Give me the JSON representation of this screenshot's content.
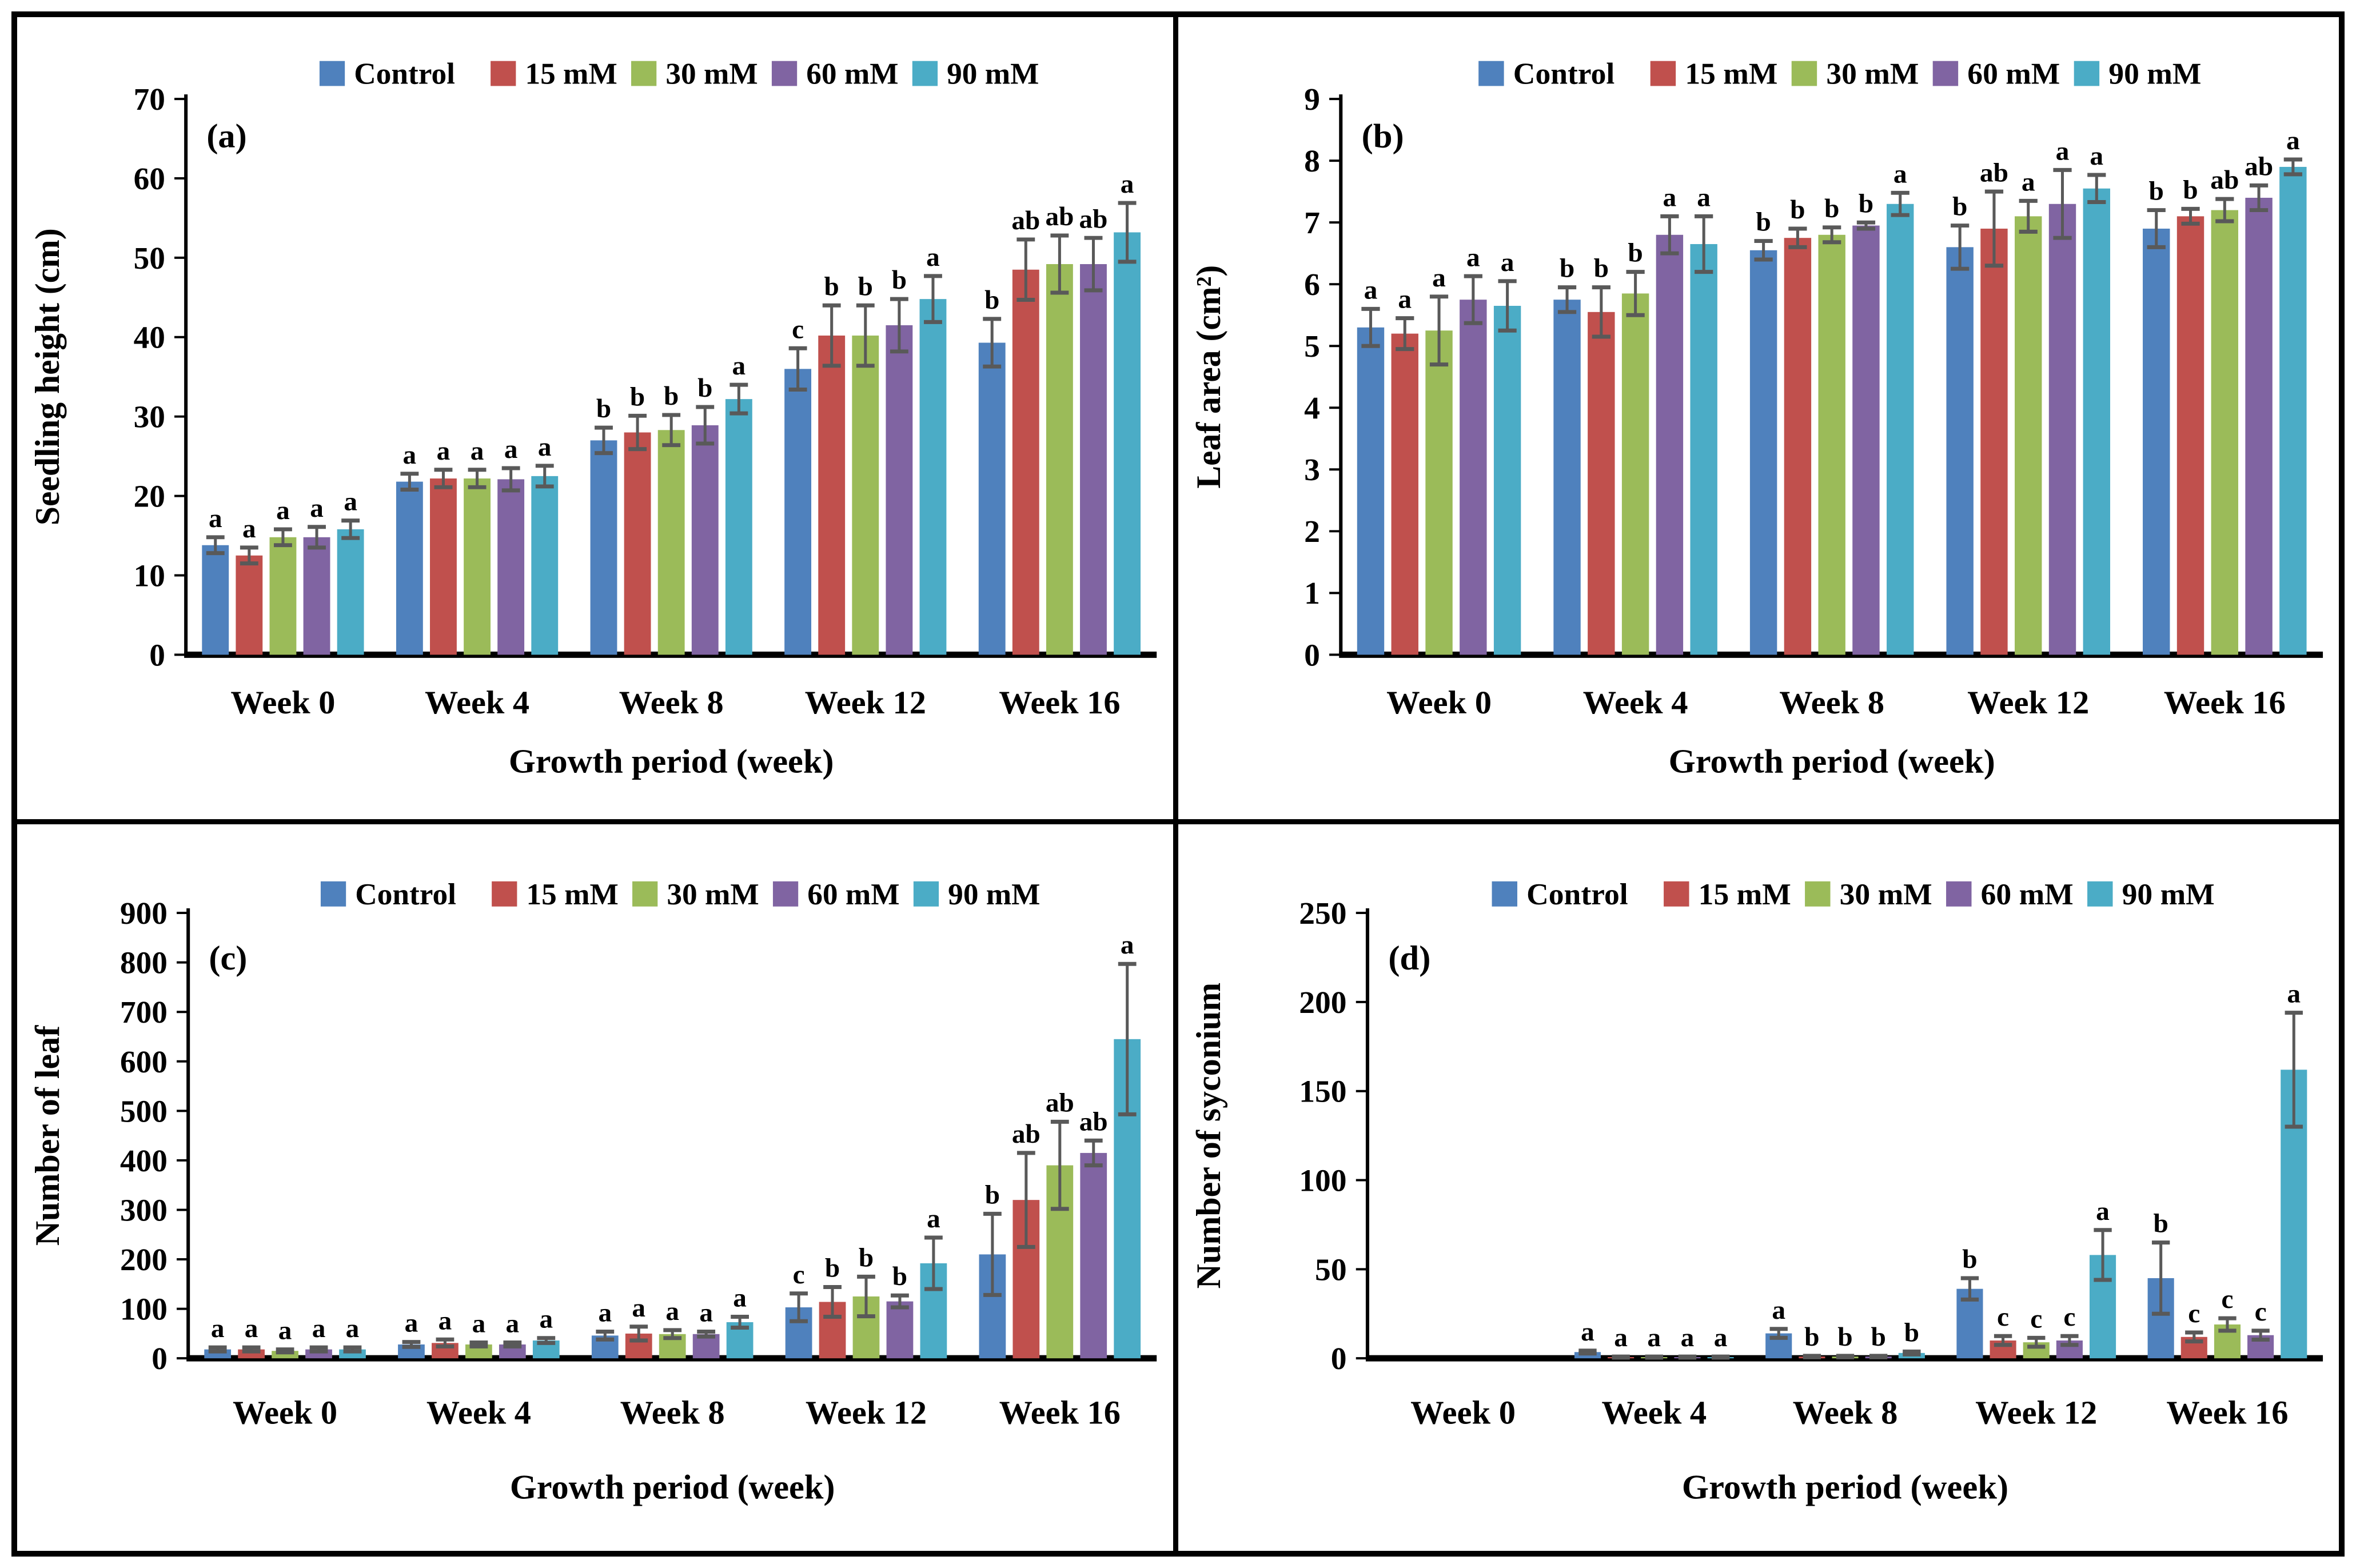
{
  "figure": {
    "background": "#FFFFFF",
    "border_color": "#000000",
    "error_bar_color": "#595959",
    "tick_label_color": "#3f3f3f",
    "text_color": "#000000"
  },
  "legend": {
    "position": "top-center",
    "items": [
      {
        "label": "Control",
        "color": "#4F81BD"
      },
      {
        "label": "15 mM",
        "color": "#C0504D"
      },
      {
        "label": "30 mM",
        "color": "#9BBB59"
      },
      {
        "label": "60 mM",
        "color": "#8064A2"
      },
      {
        "label": "90 mM",
        "color": "#4BACC6"
      }
    ]
  },
  "chart_data": [
    {
      "type": "bar",
      "panel_label": "(a)",
      "xlabel": "Growth period (week)",
      "ylabel": "Seedling height (cm)",
      "ylim": [
        0,
        70
      ],
      "ystep": 10,
      "yticks": [
        0,
        10,
        20,
        30,
        40,
        50,
        60,
        70
      ],
      "grid": false,
      "categories": [
        "Week 0",
        "Week 4",
        "Week 8",
        "Week 12",
        "Week 16"
      ],
      "series": [
        {
          "name": "Control",
          "color": "#4F81BD",
          "values": [
            13.8,
            21.8,
            27.0,
            36.0,
            39.3
          ],
          "errors": [
            1.0,
            1.0,
            1.6,
            2.6,
            3.0
          ],
          "letters": [
            "a",
            "a",
            "b",
            "c",
            "b"
          ]
        },
        {
          "name": "15 mM",
          "color": "#C0504D",
          "values": [
            12.5,
            22.2,
            28.0,
            40.2,
            48.5
          ],
          "errors": [
            1.0,
            1.1,
            2.1,
            3.8,
            3.8
          ],
          "letters": [
            "a",
            "a",
            "b",
            "b",
            "ab"
          ]
        },
        {
          "name": "30 mM",
          "color": "#9BBB59",
          "values": [
            14.8,
            22.2,
            28.3,
            40.2,
            49.2
          ],
          "errors": [
            1.0,
            1.1,
            1.9,
            3.8,
            3.6
          ],
          "letters": [
            "a",
            "a",
            "b",
            "b",
            "ab"
          ]
        },
        {
          "name": "60 mM",
          "color": "#8064A2",
          "values": [
            14.8,
            22.1,
            28.9,
            41.5,
            49.2
          ],
          "errors": [
            1.3,
            1.4,
            2.3,
            3.3,
            3.3
          ],
          "letters": [
            "a",
            "a",
            "b",
            "b",
            "ab"
          ]
        },
        {
          "name": "90 mM",
          "color": "#4BACC6",
          "values": [
            15.8,
            22.5,
            32.2,
            44.8,
            53.2
          ],
          "errors": [
            1.1,
            1.3,
            1.8,
            2.9,
            3.7
          ],
          "letters": [
            "a",
            "a",
            "a",
            "a",
            "a"
          ]
        }
      ]
    },
    {
      "type": "bar",
      "panel_label": "(b)",
      "xlabel": "Growth period (week)",
      "ylabel": "Leaf area (cm²)",
      "ylim": [
        0,
        9
      ],
      "ystep": 1,
      "yticks": [
        0,
        1,
        2,
        3,
        4,
        5,
        6,
        7,
        8,
        9
      ],
      "grid": false,
      "categories": [
        "Week 0",
        "Week 4",
        "Week 8",
        "Week 12",
        "Week 16"
      ],
      "series": [
        {
          "name": "Control",
          "color": "#4F81BD",
          "values": [
            5.3,
            5.75,
            6.55,
            6.6,
            6.9
          ],
          "errors": [
            0.3,
            0.2,
            0.15,
            0.35,
            0.3
          ],
          "letters": [
            "a",
            "b",
            "b",
            "b",
            "b"
          ]
        },
        {
          "name": "15 mM",
          "color": "#C0504D",
          "values": [
            5.2,
            5.55,
            6.75,
            6.9,
            7.1
          ],
          "errors": [
            0.25,
            0.4,
            0.15,
            0.6,
            0.12
          ],
          "letters": [
            "a",
            "b",
            "b",
            "ab",
            "b"
          ]
        },
        {
          "name": "30 mM",
          "color": "#9BBB59",
          "values": [
            5.25,
            5.85,
            6.8,
            7.1,
            7.2
          ],
          "errors": [
            0.55,
            0.35,
            0.12,
            0.25,
            0.18
          ],
          "letters": [
            "a",
            "b",
            "b",
            "a",
            "ab"
          ]
        },
        {
          "name": "60 mM",
          "color": "#8064A2",
          "values": [
            5.75,
            6.8,
            6.95,
            7.3,
            7.4
          ],
          "errors": [
            0.38,
            0.3,
            0.05,
            0.55,
            0.2
          ],
          "letters": [
            "a",
            "a",
            "b",
            "a",
            "ab"
          ]
        },
        {
          "name": "90 mM",
          "color": "#4BACC6",
          "values": [
            5.65,
            6.65,
            7.3,
            7.55,
            7.9
          ],
          "errors": [
            0.4,
            0.45,
            0.18,
            0.22,
            0.12
          ],
          "letters": [
            "a",
            "a",
            "a",
            "a",
            "a"
          ]
        }
      ]
    },
    {
      "type": "bar",
      "panel_label": "(c)",
      "xlabel": "Growth period (week)",
      "ylabel": "Number of leaf",
      "ylim": [
        0,
        900
      ],
      "ystep": 100,
      "yticks": [
        0,
        100,
        200,
        300,
        400,
        500,
        600,
        700,
        800,
        900
      ],
      "grid": false,
      "categories": [
        "Week 0",
        "Week 4",
        "Week 8",
        "Week 12",
        "Week 16"
      ],
      "series": [
        {
          "name": "Control",
          "color": "#4F81BD",
          "values": [
            18,
            28,
            46,
            103,
            210
          ],
          "errors": [
            4,
            5,
            8,
            28,
            82
          ],
          "letters": [
            "a",
            "a",
            "a",
            "c",
            "b"
          ]
        },
        {
          "name": "15 mM",
          "color": "#C0504D",
          "values": [
            18,
            31,
            50,
            114,
            320
          ],
          "errors": [
            4,
            7,
            14,
            30,
            95
          ],
          "letters": [
            "a",
            "a",
            "a",
            "b",
            "ab"
          ]
        },
        {
          "name": "30 mM",
          "color": "#9BBB59",
          "values": [
            15,
            28,
            49,
            125,
            390
          ],
          "errors": [
            3,
            4,
            8,
            40,
            88
          ],
          "letters": [
            "a",
            "a",
            "a",
            "b",
            "ab"
          ]
        },
        {
          "name": "60 mM",
          "color": "#8064A2",
          "values": [
            18,
            28,
            49,
            115,
            415
          ],
          "errors": [
            4,
            4,
            5,
            12,
            25
          ],
          "letters": [
            "a",
            "a",
            "a",
            "b",
            "ab"
          ]
        },
        {
          "name": "90 mM",
          "color": "#4BACC6",
          "values": [
            18,
            36,
            73,
            192,
            645
          ],
          "errors": [
            4,
            5,
            11,
            52,
            152
          ],
          "letters": [
            "a",
            "a",
            "a",
            "a",
            "a"
          ]
        }
      ]
    },
    {
      "type": "bar",
      "panel_label": "(d)",
      "xlabel": "Growth period (week)",
      "ylabel": "Number of syconium",
      "ylim": [
        0,
        250
      ],
      "ystep": 50,
      "yticks": [
        0,
        50,
        100,
        150,
        200,
        250
      ],
      "grid": false,
      "categories": [
        "Week 0",
        "Week 4",
        "Week 8",
        "Week 12",
        "Week 16"
      ],
      "series": [
        {
          "name": "Control",
          "color": "#4F81BD",
          "values": [
            0,
            3.5,
            14,
            39,
            45
          ],
          "errors": [
            0,
            0.8,
            2.5,
            6,
            20
          ],
          "letters": [
            "",
            "a",
            "a",
            "b",
            "b"
          ]
        },
        {
          "name": "15 mM",
          "color": "#C0504D",
          "values": [
            0,
            0.7,
            1,
            10,
            12
          ],
          "errors": [
            0,
            0.3,
            0.4,
            2.5,
            2.5
          ],
          "letters": [
            "",
            "a",
            "b",
            "c",
            "c"
          ]
        },
        {
          "name": "30 mM",
          "color": "#9BBB59",
          "values": [
            0,
            0.7,
            1,
            9,
            19
          ],
          "errors": [
            0,
            0.3,
            0.4,
            2.5,
            3.5
          ],
          "letters": [
            "",
            "a",
            "b",
            "c",
            "c"
          ]
        },
        {
          "name": "60 mM",
          "color": "#8064A2",
          "values": [
            0,
            0.7,
            1,
            10,
            13
          ],
          "errors": [
            0,
            0.3,
            0.4,
            2.5,
            2.5
          ],
          "letters": [
            "",
            "a",
            "b",
            "c",
            "c"
          ]
        },
        {
          "name": "90 mM",
          "color": "#4BACC6",
          "values": [
            0,
            0.7,
            3,
            58,
            162
          ],
          "errors": [
            0,
            0.3,
            0.8,
            14,
            32
          ],
          "letters": [
            "",
            "a",
            "b",
            "a",
            "a"
          ]
        }
      ]
    }
  ]
}
